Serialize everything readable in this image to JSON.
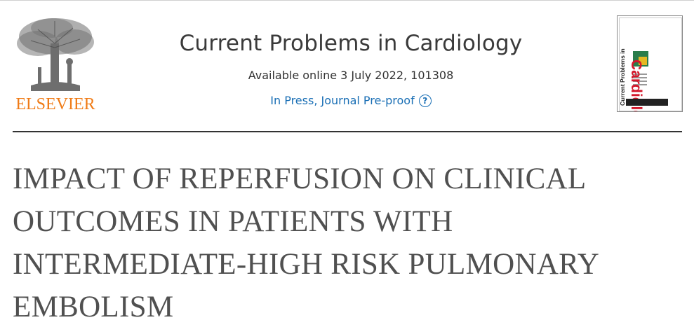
{
  "publisher": {
    "name": "ELSEVIER",
    "brand_color": "#f07b16",
    "logo_icon": "elsevier-tree-icon"
  },
  "journal": {
    "title": "Current Problems in Cardiology",
    "availability": "Available online 3 July 2022, 101308",
    "status": "In Press, Journal Pre-proof",
    "status_color": "#1a6fb5",
    "help_icon": "question-circle-icon",
    "help_glyph": "?"
  },
  "cover": {
    "word": "Cardiology",
    "subtitle": "Current Problems in",
    "accent_color": "#d3182b"
  },
  "article": {
    "title": "IMPACT OF REPERFUSION ON CLINICAL OUTCOMES IN PATIENTS WITH INTERMEDIATE-HIGH RISK PULMONARY EMBOLISM"
  }
}
